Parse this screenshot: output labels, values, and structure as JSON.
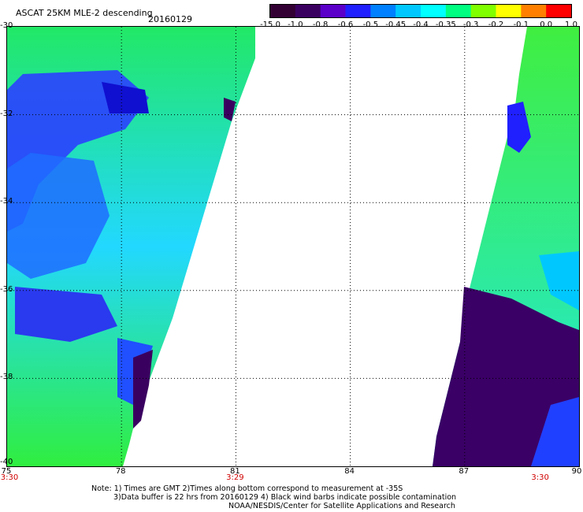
{
  "header": {
    "title": "ASCAT 25KM MLE-2 descending",
    "date": "20160129"
  },
  "colorbar": {
    "labels": [
      "-15.0",
      "-1.0",
      "-0.8",
      "-0.6",
      "-0.5",
      "-0.45",
      "-0.4",
      "-0.35",
      "-0.3",
      "-0.2",
      "-0.1",
      "0.0",
      "1.0"
    ],
    "colors": [
      "#330033",
      "#3a0060",
      "#5a00c8",
      "#2020ff",
      "#0080ff",
      "#00c8ff",
      "#00ffff",
      "#00ff80",
      "#80ff00",
      "#ffff00",
      "#ff8000",
      "#ff0000"
    ]
  },
  "axes": {
    "lat_labels": [
      "-30",
      "-32",
      "-34",
      "-36",
      "-38",
      "-40"
    ],
    "lon_labels": [
      "75",
      "78",
      "81",
      "84",
      "87",
      "90"
    ],
    "lat_range": [
      -40,
      -30
    ],
    "lon_range": [
      75,
      90
    ],
    "time_labels": [
      {
        "lon": 75,
        "text": "3:30"
      },
      {
        "lon": 81,
        "text": "3:29"
      },
      {
        "lon": 89,
        "text": "3:30"
      }
    ]
  },
  "notes": {
    "line1": "Note: 1) Times are GMT 2)Times along bottom correspond to measurement at -35S",
    "line2": "3)Data buffer is 22 hrs from 20160129 4) Black wind barbs indicate possible contamination",
    "line3": "NOAA/NESDIS/Center for Satellite Applications and Research"
  }
}
